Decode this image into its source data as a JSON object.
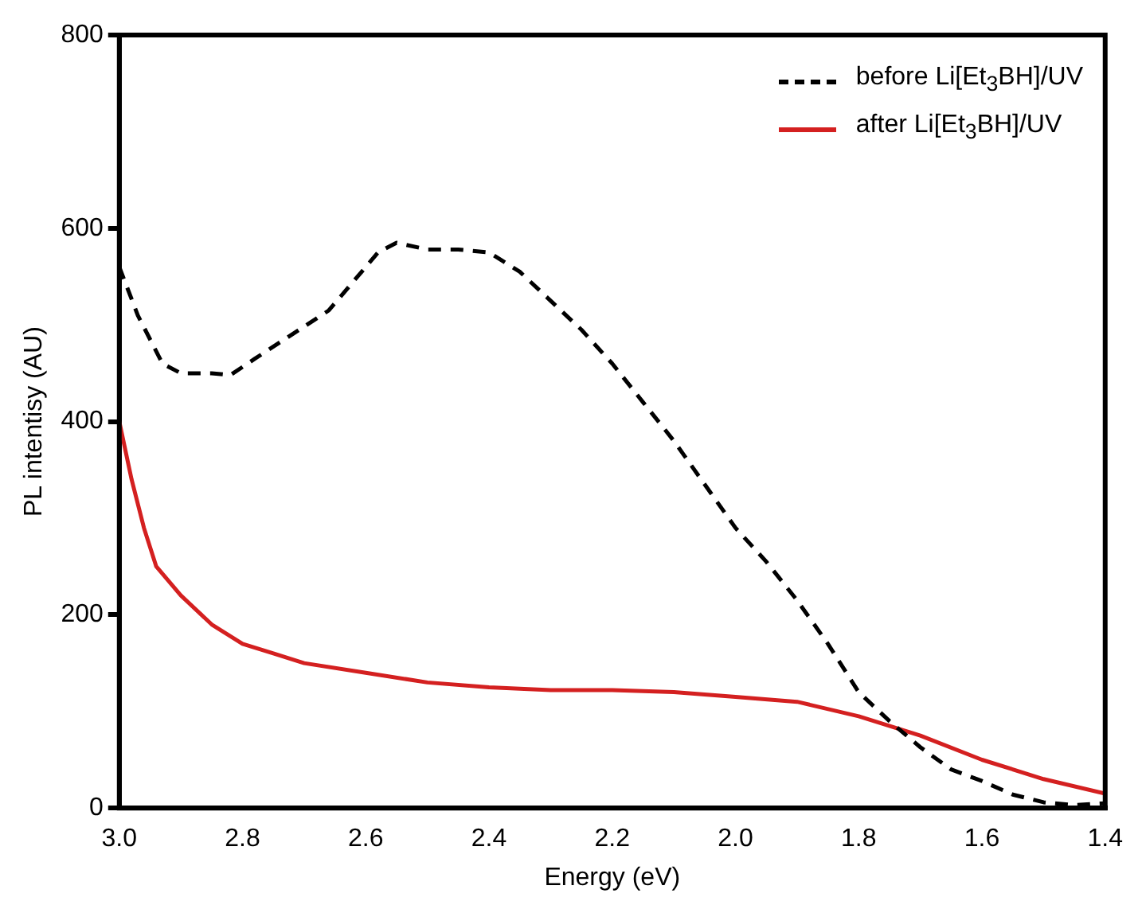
{
  "chart_data": {
    "type": "line",
    "xlabel": "Energy (eV)",
    "ylabel": "PL intentisy (AU)",
    "xlim": [
      3.0,
      1.4
    ],
    "xticks": [
      {
        "value": 3.0,
        "label": "3.0"
      },
      {
        "value": 2.8,
        "label": "2.8"
      },
      {
        "value": 2.6,
        "label": "2.6"
      },
      {
        "value": 2.4,
        "label": "2.4"
      },
      {
        "value": 2.2,
        "label": "2.2"
      },
      {
        "value": 2.0,
        "label": "2.0"
      },
      {
        "value": 1.8,
        "label": "1.8"
      },
      {
        "value": 1.6,
        "label": "1.6"
      },
      {
        "value": 1.4,
        "label": "1.4"
      }
    ],
    "ylim": [
      0,
      800
    ],
    "yticks": [
      0,
      200,
      400,
      600,
      800
    ],
    "grid": false,
    "legend": "top right",
    "marker": "none",
    "series": [
      {
        "name": "before Li[Et$_{3}$BH]/UV",
        "color": "#000000",
        "line_style": "dashed",
        "x": [
          3.0,
          2.97,
          2.93,
          2.9,
          2.85,
          2.82,
          2.78,
          2.72,
          2.66,
          2.62,
          2.58,
          2.55,
          2.5,
          2.45,
          2.4,
          2.35,
          2.3,
          2.25,
          2.2,
          2.15,
          2.1,
          2.05,
          2.0,
          1.95,
          1.9,
          1.85,
          1.8,
          1.75,
          1.7,
          1.65,
          1.6,
          1.55,
          1.5,
          1.45,
          1.4
        ],
        "values": [
          560,
          510,
          460,
          450,
          450,
          448,
          465,
          490,
          515,
          545,
          575,
          585,
          578,
          578,
          575,
          555,
          525,
          495,
          460,
          420,
          380,
          335,
          290,
          255,
          215,
          170,
          120,
          90,
          63,
          40,
          28,
          14,
          6,
          3,
          5
        ]
      },
      {
        "name": "after Li[Et$_{3}$BH]/UV",
        "color": "#d42020",
        "line_style": "solid",
        "x": [
          3.0,
          2.98,
          2.96,
          2.94,
          2.9,
          2.85,
          2.8,
          2.75,
          2.7,
          2.6,
          2.5,
          2.4,
          2.3,
          2.2,
          2.1,
          2.0,
          1.9,
          1.8,
          1.7,
          1.6,
          1.5,
          1.4
        ],
        "values": [
          400,
          340,
          290,
          250,
          220,
          190,
          170,
          160,
          150,
          140,
          130,
          125,
          122,
          122,
          120,
          115,
          110,
          95,
          75,
          50,
          30,
          15
        ]
      }
    ]
  }
}
